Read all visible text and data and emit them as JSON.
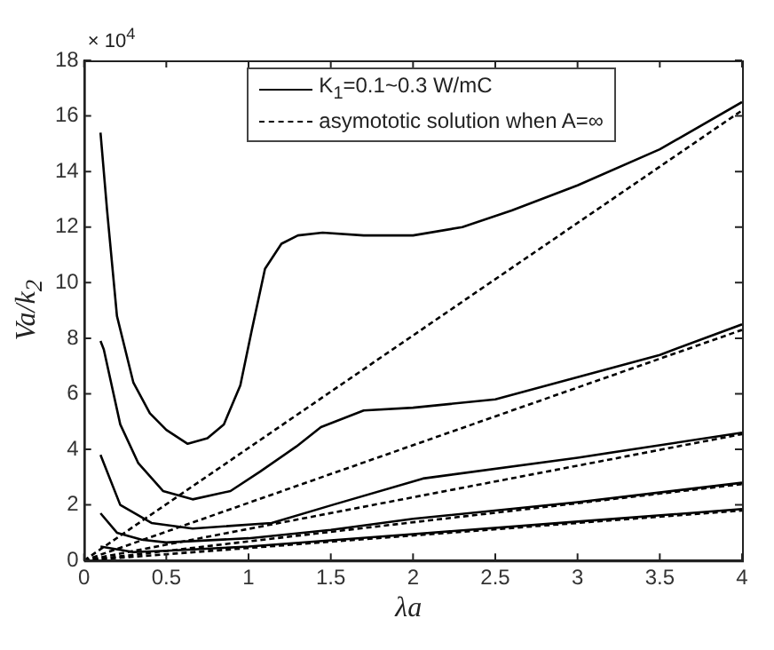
{
  "chart_data": {
    "type": "line",
    "xlabel": "λa",
    "ylabel": "Va/k$_{2}$",
    "annotations": [
      "× 10$^{4}$"
    ],
    "xlim": [
      0,
      4
    ],
    "xticks": [
      0,
      0.5,
      1,
      1.5,
      2,
      2.5,
      3,
      3.5,
      4
    ],
    "ylim": [
      0,
      18
    ],
    "yticks": [
      0,
      2,
      4,
      6,
      8,
      10,
      12,
      14,
      16,
      18
    ],
    "grid": false,
    "legend": "top",
    "marker": "none",
    "series": [
      {
        "name": "K$_{1}$=0.1~0.3 W/mC",
        "color": "#000000",
        "line_style": "solid",
        "x": [
          0.1,
          0.14,
          0.2,
          0.3,
          0.4,
          0.5,
          0.63,
          0.75,
          0.85,
          0.95,
          1.02,
          1.1,
          1.2,
          1.3,
          1.45,
          1.7,
          2.0,
          2.3,
          2.6,
          3.0,
          3.5,
          4.0
        ],
        "values": [
          15.4,
          12.6,
          8.8,
          6.4,
          5.3,
          4.7,
          4.2,
          4.4,
          4.9,
          6.3,
          8.3,
          10.5,
          11.4,
          11.7,
          11.8,
          11.7,
          11.7,
          12.0,
          12.6,
          13.5,
          14.8,
          16.5
        ]
      },
      {
        "color": "#000000",
        "line_style": "solid",
        "x": [
          0.1,
          0.12,
          0.22,
          0.33,
          0.48,
          0.66,
          0.89,
          1.07,
          1.29,
          1.44,
          1.7,
          2.0,
          2.5,
          3.0,
          3.5,
          4.0
        ],
        "values": [
          7.9,
          7.6,
          4.9,
          3.5,
          2.5,
          2.2,
          2.5,
          3.2,
          4.1,
          4.8,
          5.4,
          5.5,
          5.8,
          6.6,
          7.4,
          8.5
        ]
      },
      {
        "color": "#000000",
        "line_style": "solid",
        "x": [
          0.1,
          0.22,
          0.41,
          0.66,
          1.14,
          1.51,
          2.06,
          3.0,
          4.0
        ],
        "values": [
          3.8,
          2.0,
          1.35,
          1.15,
          1.35,
          2.0,
          2.95,
          3.7,
          4.6
        ]
      },
      {
        "color": "#000000",
        "line_style": "solid",
        "x": [
          0.1,
          0.2,
          0.35,
          0.5,
          1.0,
          1.5,
          2.0,
          3.0,
          4.0
        ],
        "values": [
          1.7,
          1.0,
          0.75,
          0.65,
          0.8,
          1.1,
          1.5,
          2.1,
          2.8
        ]
      },
      {
        "color": "#000000",
        "line_style": "solid",
        "x": [
          0.1,
          0.3,
          0.5,
          1.0,
          2.0,
          3.0,
          4.0
        ],
        "values": [
          0.5,
          0.3,
          0.35,
          0.5,
          0.95,
          1.4,
          1.85
        ]
      },
      {
        "name": "asymototic solution when A=∞",
        "color": "#000000",
        "line_style": "dashed",
        "x": [
          0,
          4
        ],
        "values": [
          0,
          16.2
        ]
      },
      {
        "color": "#000000",
        "line_style": "dashed",
        "x": [
          0,
          4
        ],
        "values": [
          0,
          8.3
        ]
      },
      {
        "color": "#000000",
        "line_style": "dashed",
        "x": [
          0,
          4
        ],
        "values": [
          0,
          4.55
        ]
      },
      {
        "color": "#000000",
        "line_style": "dashed",
        "x": [
          0,
          4
        ],
        "values": [
          0,
          2.75
        ]
      },
      {
        "color": "#000000",
        "line_style": "dashed",
        "x": [
          0,
          4
        ],
        "values": [
          0,
          1.8
        ]
      }
    ]
  }
}
